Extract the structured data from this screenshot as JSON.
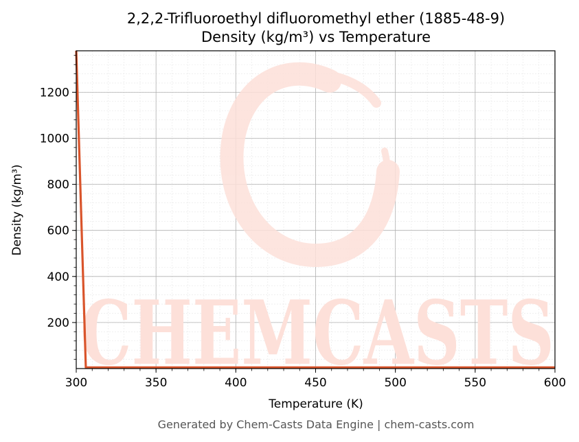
{
  "colors": {
    "line": "#d9542b",
    "grid_major": "#b0b0b0",
    "grid_minor": "#e6e6e6",
    "watermark": "#fde0d9",
    "footer_text": "#555555"
  },
  "watermark": {
    "text": "CHEMCASTS"
  },
  "footer": {
    "text": "Generated by Chem-Casts Data Engine | chem-casts.com"
  },
  "chart_data": {
    "type": "line",
    "title": "2,2,2-Trifluoroethyl difluoromethyl ether (1885-48-9)",
    "subtitle": "Density (kg/m³) vs Temperature",
    "xlabel": "Temperature (K)",
    "ylabel": "Density (kg/m³)",
    "xlim": [
      300,
      600
    ],
    "ylim": [
      0,
      1380
    ],
    "x_ticks": [
      300,
      350,
      400,
      450,
      500,
      550,
      600
    ],
    "y_ticks": [
      200,
      400,
      600,
      800,
      1000,
      1200
    ],
    "grid": true,
    "series": [
      {
        "x": [
          300,
          306,
          600
        ],
        "y": [
          1380,
          5,
          5
        ]
      }
    ]
  }
}
